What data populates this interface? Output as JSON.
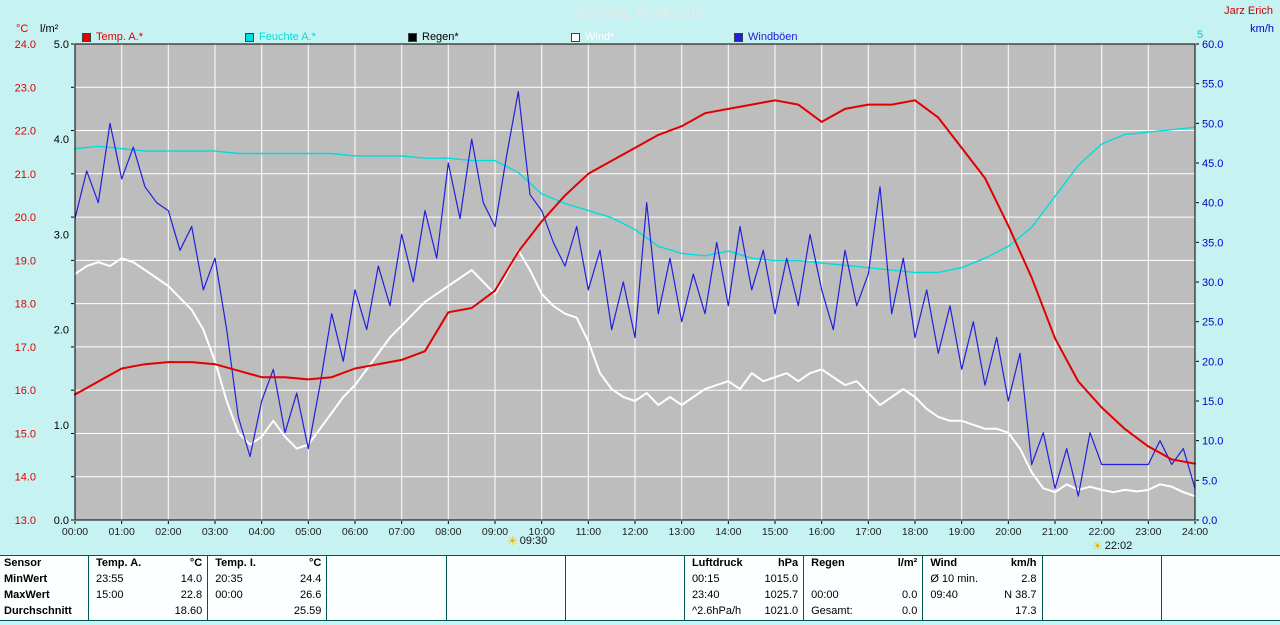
{
  "header": {
    "title": "Samstag, 06.08.2016",
    "station": "Jarz Erich"
  },
  "axis_units": {
    "temp": "°C",
    "rain": "l/m²",
    "wind": "km/h",
    "humidity_top_label": "5"
  },
  "legend": {
    "items": [
      {
        "id": "temp",
        "label": "Temp. A.*",
        "color": "#e10000"
      },
      {
        "id": "humidity",
        "label": "Feuchte A.*",
        "color": "#00dddd"
      },
      {
        "id": "rain",
        "label": "Regen*",
        "color": "#000000"
      },
      {
        "id": "wind",
        "label": "Wind*",
        "color": "#ffffff"
      },
      {
        "id": "gusts",
        "label": "Windböen",
        "color": "#2020dd"
      }
    ]
  },
  "markers": [
    {
      "time": "09:30"
    },
    {
      "time": "22:02"
    }
  ],
  "chart_data": {
    "type": "line",
    "title": "Samstag, 06.08.2016",
    "x_range_hours": [
      0,
      24
    ],
    "x_tick_labels": [
      "00:00",
      "01:00",
      "02:00",
      "03:00",
      "04:00",
      "05:00",
      "06:00",
      "07:00",
      "08:00",
      "09:00",
      "10:00",
      "11:00",
      "12:00",
      "13:00",
      "14:00",
      "15:00",
      "16:00",
      "17:00",
      "18:00",
      "19:00",
      "20:00",
      "21:00",
      "22:00",
      "23:00",
      "24:00"
    ],
    "axes": {
      "temp": {
        "unit": "°C",
        "min": 13,
        "max": 24,
        "step": 1,
        "color": "#e10000",
        "side": "left"
      },
      "rain": {
        "unit": "l/m²",
        "min": 0,
        "max": 5,
        "step": 1,
        "color": "#000000",
        "side": "left"
      },
      "wind": {
        "unit": "km/h",
        "min": 0,
        "max": 60,
        "step": 5,
        "color": "#0000cc",
        "side": "right"
      },
      "humidity": {
        "unit": "%",
        "min": 0,
        "max": 100,
        "step": 10,
        "color": "#00cccc",
        "side": "right"
      }
    },
    "colors": {
      "background": "#c6f2f2",
      "plot_bg": "#bdbdbd",
      "grid": "#ffffff",
      "frame": "#000000",
      "x_label": "#222222"
    },
    "grid": {
      "vertical_every_hours": 1,
      "horizontal_every_temp_deg": 1
    },
    "series": {
      "temp": {
        "name": "Temp. A.",
        "axis": "temp",
        "step_h": 0.5,
        "color": "#e10000",
        "width": 2,
        "values": [
          15.9,
          16.2,
          16.5,
          16.6,
          16.65,
          16.65,
          16.6,
          16.45,
          16.3,
          16.3,
          16.25,
          16.3,
          16.5,
          16.6,
          16.7,
          16.9,
          17.8,
          17.9,
          18.3,
          19.2,
          19.9,
          20.5,
          21.0,
          21.3,
          21.6,
          21.9,
          22.1,
          22.4,
          22.5,
          22.6,
          22.7,
          22.6,
          22.2,
          22.5,
          22.6,
          22.6,
          22.7,
          22.3,
          21.6,
          20.9,
          19.8,
          18.6,
          17.2,
          16.2,
          15.6,
          15.1,
          14.7,
          14.4,
          14.3
        ]
      },
      "humidity": {
        "name": "Feuchte A.",
        "axis": "humidity",
        "step_h": 0.5,
        "color": "#00dddd",
        "width": 1.4,
        "values": [
          78,
          78.5,
          78,
          77.5,
          77.5,
          77.5,
          77.5,
          77,
          77,
          77,
          77,
          77,
          76.5,
          76.5,
          76.5,
          76,
          76,
          75.5,
          75.5,
          73,
          68.5,
          66.5,
          65,
          63.5,
          61,
          57.5,
          56,
          55.5,
          56.5,
          55,
          54.5,
          54.5,
          54,
          53.5,
          53,
          52.5,
          52,
          52,
          53,
          55,
          57.5,
          61.5,
          68,
          74.5,
          79,
          81,
          81.5,
          82,
          82.5
        ]
      },
      "wind": {
        "name": "Wind",
        "axis": "wind",
        "step_h": 0.25,
        "color": "#ffffff",
        "width": 2,
        "values": [
          31,
          32,
          32.5,
          32,
          33,
          32.5,
          31.5,
          30.5,
          29.5,
          28,
          26.5,
          24,
          20,
          15,
          11,
          9.5,
          10.5,
          12.5,
          10.5,
          9,
          9.5,
          11.5,
          13.5,
          15.5,
          17,
          19,
          21,
          23,
          24.5,
          26,
          27.5,
          28.5,
          29.5,
          30.5,
          31.5,
          30,
          28.5,
          31,
          34,
          31.5,
          28.5,
          27,
          26,
          25.5,
          22.5,
          18.5,
          16.5,
          15.5,
          15,
          16,
          14.5,
          15.5,
          14.5,
          15.5,
          16.5,
          17,
          17.5,
          16.5,
          18.5,
          17.5,
          18,
          18.5,
          17.5,
          18.5,
          19,
          18,
          17,
          17.5,
          16,
          14.5,
          15.5,
          16.5,
          15.5,
          14,
          13,
          12.5,
          12.5,
          12,
          11.5,
          11.5,
          11,
          9,
          6,
          4,
          3.5,
          4.5,
          3.8,
          4.2,
          3.8,
          3.5,
          3.8,
          3.6,
          3.8,
          4.5,
          4.2,
          3.5,
          3
        ]
      },
      "gusts": {
        "name": "Windböen",
        "axis": "wind",
        "step_h": 0.25,
        "color": "#2020dd",
        "width": 1.2,
        "values": [
          38,
          44,
          40,
          50,
          43,
          47,
          42,
          40,
          39,
          34,
          37,
          29,
          33,
          24,
          13,
          8,
          15,
          19,
          11,
          16,
          9,
          17,
          26,
          20,
          29,
          24,
          32,
          27,
          36,
          30,
          39,
          33,
          45,
          38,
          48,
          40,
          37,
          46,
          54,
          41,
          39,
          35,
          32,
          37,
          29,
          34,
          24,
          30,
          23,
          40,
          26,
          33,
          25,
          31,
          26,
          35,
          27,
          37,
          29,
          34,
          26,
          33,
          27,
          36,
          29,
          24,
          34,
          27,
          31,
          42,
          26,
          33,
          23,
          29,
          21,
          27,
          19,
          25,
          17,
          23,
          15,
          21,
          7,
          11,
          4,
          9,
          3,
          11,
          7,
          7,
          7,
          7,
          7,
          10,
          7,
          9,
          4
        ]
      },
      "rain": {
        "name": "Regen",
        "axis": "rain",
        "step_h": 24,
        "color": "#000000",
        "width": 1,
        "values": [
          0,
          0
        ]
      }
    }
  },
  "table": {
    "row_labels": [
      "Sensor",
      "MinWert",
      "MaxWert",
      "Durchschnitt"
    ],
    "columns": [
      {
        "name": "Temp. A.",
        "unit": "°C",
        "cells": [
          [
            "23:55",
            "14.0"
          ],
          [
            "15:00",
            "22.8"
          ],
          [
            "",
            "18.60"
          ]
        ]
      },
      {
        "name": "Temp. I.",
        "unit": "°C",
        "cells": [
          [
            "20:35",
            "24.4"
          ],
          [
            "00:00",
            "26.6"
          ],
          [
            "",
            "25.59"
          ]
        ]
      },
      {
        "name": "",
        "unit": "",
        "cells": [
          [
            "",
            ""
          ],
          [
            "",
            ""
          ],
          [
            "",
            ""
          ]
        ]
      },
      {
        "name": "",
        "unit": "",
        "cells": [
          [
            "",
            ""
          ],
          [
            "",
            ""
          ],
          [
            "",
            ""
          ]
        ]
      },
      {
        "name": "",
        "unit": "",
        "cells": [
          [
            "",
            ""
          ],
          [
            "",
            ""
          ],
          [
            "",
            ""
          ]
        ]
      },
      {
        "name": "Luftdruck",
        "unit": "hPa",
        "cells": [
          [
            "00:15",
            "1015.0"
          ],
          [
            "23:40",
            "1025.7"
          ],
          [
            "^2.6hPa/h",
            "1021.0"
          ]
        ]
      },
      {
        "name": "Regen",
        "unit": "l/m²",
        "cells": [
          [
            "",
            ""
          ],
          [
            "00:00",
            "0.0"
          ],
          [
            "Gesamt:",
            "0.0"
          ]
        ]
      },
      {
        "name": "Wind",
        "unit": "km/h",
        "cells": [
          [
            "Ø 10 min.",
            "2.8"
          ],
          [
            "09:40",
            "N 38.7"
          ],
          [
            "",
            "17.3"
          ]
        ]
      },
      {
        "name": "",
        "unit": "",
        "cells": [
          [
            "",
            ""
          ],
          [
            "",
            ""
          ],
          [
            "",
            ""
          ]
        ]
      },
      {
        "name": "",
        "unit": "",
        "cells": [
          [
            "",
            ""
          ],
          [
            "",
            ""
          ],
          [
            "",
            ""
          ]
        ]
      }
    ]
  }
}
